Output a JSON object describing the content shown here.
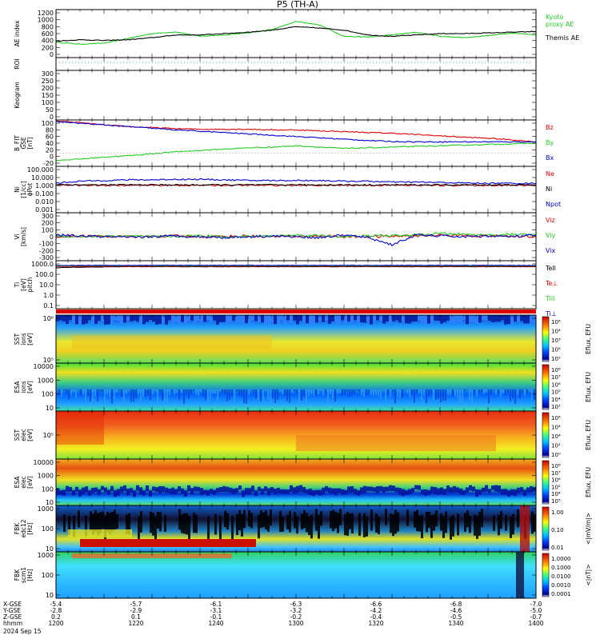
{
  "title": "P5 (TH-A)",
  "colors": {
    "black": "#000000",
    "red": "#dd0000",
    "green": "#22cc22",
    "blue": "#0000cc",
    "lime": "#00dd00",
    "cyan_dots": "#00bbbb"
  },
  "chart_data": [
    {
      "id": "ae",
      "type": "line",
      "ylabel": "AE index",
      "ylim": [
        -100,
        1300
      ],
      "yticks": [
        "1200",
        "1000",
        "800",
        "600",
        "400",
        "200",
        "0"
      ],
      "x": [
        1200,
        1210,
        1220,
        1230,
        1240,
        1250,
        1260,
        1270,
        1280,
        1290,
        1300,
        1310,
        1320,
        1330,
        1340,
        1350,
        1360,
        1370,
        1380,
        1390,
        1400
      ],
      "series": [
        {
          "name": "Kyoto proxy AE",
          "legend": [
            "Kyoto",
            "proxy AE"
          ],
          "color": "#22cc22",
          "values": [
            350,
            290,
            320,
            460,
            600,
            650,
            520,
            560,
            620,
            720,
            950,
            850,
            520,
            500,
            560,
            640,
            520,
            480,
            540,
            620,
            560
          ]
        },
        {
          "name": "Themis AE",
          "legend": [
            "Themis AE"
          ],
          "color": "#000000",
          "values": [
            380,
            420,
            400,
            420,
            480,
            560,
            560,
            600,
            640,
            700,
            800,
            760,
            700,
            560,
            520,
            560,
            600,
            600,
            620,
            640,
            660
          ]
        }
      ]
    },
    {
      "id": "roi",
      "type": "line",
      "ylabel": "ROI",
      "ylim": [
        0,
        1
      ],
      "yticks": []
    },
    {
      "id": "keogram",
      "type": "line",
      "ylabel": "Keogram",
      "ylim": [
        0,
        320
      ],
      "yticks": [
        "300",
        "250",
        "200",
        "150",
        "100",
        "50",
        "0"
      ]
    },
    {
      "id": "bfield",
      "type": "line",
      "ylabel": [
        "B_FIT",
        "GSE",
        "[nT]"
      ],
      "ylim": [
        -40,
        100
      ],
      "yticks": [
        "100",
        "80",
        "60",
        "40",
        "20",
        "0",
        "-20"
      ],
      "x": [
        1200,
        1210,
        1220,
        1230,
        1240,
        1250,
        1260,
        1270,
        1280,
        1290,
        1300,
        1310,
        1320,
        1330,
        1340,
        1350,
        1360,
        1370,
        1380,
        1390,
        1400
      ],
      "series": [
        {
          "name": "Bz",
          "color": "#dd0000",
          "values": [
            97,
            92,
            85,
            80,
            77,
            74,
            72,
            72,
            72,
            70,
            70,
            67,
            65,
            62,
            60,
            56,
            52,
            48,
            45,
            40,
            34
          ]
        },
        {
          "name": "By",
          "color": "#22cc22",
          "values": [
            -22,
            -18,
            -12,
            -8,
            -2,
            4,
            8,
            12,
            16,
            18,
            22,
            18,
            14,
            16,
            18,
            20,
            22,
            24,
            26,
            28,
            30
          ]
        },
        {
          "name": "Bx",
          "color": "#0000cc",
          "values": [
            95,
            90,
            85,
            80,
            75,
            70,
            66,
            62,
            58,
            54,
            50,
            46,
            42,
            38,
            35,
            34,
            34,
            34,
            34,
            34,
            34
          ]
        }
      ]
    },
    {
      "id": "density",
      "type": "line",
      "ylabel": [
        "Ni",
        "[1/cc]",
        "ϕPot"
      ],
      "yscale": "log",
      "ylim": [
        0.001,
        100
      ],
      "yticks": [
        "100.000",
        "10.000",
        "1.000",
        "0.100",
        "0.010",
        "0.001"
      ],
      "x": [
        1200,
        1210,
        1220,
        1230,
        1240,
        1250,
        1260,
        1270,
        1280,
        1290,
        1300,
        1310,
        1320,
        1330,
        1340,
        1350,
        1360,
        1370,
        1380,
        1390,
        1400
      ],
      "series": [
        {
          "name": "Ne",
          "color": "#dd0000",
          "values": [
            1.0,
            0.9,
            0.9,
            0.9,
            0.9,
            0.9,
            0.9,
            0.9,
            0.9,
            0.9,
            0.9,
            0.9,
            0.9,
            0.9,
            0.9,
            0.9,
            0.9,
            0.9,
            0.9,
            0.9,
            0.9
          ]
        },
        {
          "name": "Ni",
          "color": "#000000",
          "values": [
            1.1,
            1.0,
            1.0,
            1.0,
            1.0,
            1.0,
            1.0,
            1.0,
            1.0,
            1.0,
            1.0,
            1.0,
            1.0,
            1.0,
            1.0,
            1.0,
            1.0,
            1.0,
            1.0,
            1.0,
            1.0
          ]
        },
        {
          "name": "Npot",
          "color": "#0000cc",
          "values": [
            1.5,
            2.5,
            3.0,
            3.5,
            3.5,
            4.0,
            4.0,
            3.5,
            3.0,
            3.0,
            3.0,
            3.0,
            2.5,
            2.5,
            2.0,
            2.0,
            1.8,
            1.6,
            1.5,
            1.5,
            1.4
          ]
        }
      ]
    },
    {
      "id": "velocity",
      "type": "line",
      "ylabel": [
        "Vi",
        "[km/s]"
      ],
      "ylim": [
        -300,
        300
      ],
      "yticks": [
        "300",
        "200",
        "100",
        "0",
        "-100",
        "-200",
        "-300"
      ],
      "x": [
        1200,
        1210,
        1220,
        1230,
        1240,
        1250,
        1260,
        1270,
        1280,
        1290,
        1300,
        1310,
        1320,
        1330,
        1340,
        1350,
        1360,
        1370,
        1380,
        1390,
        1400
      ],
      "series": [
        {
          "name": "Viz",
          "color": "#dd0000",
          "values": [
            0,
            10,
            5,
            0,
            5,
            10,
            0,
            5,
            10,
            0,
            5,
            10,
            0,
            0,
            5,
            10,
            20,
            15,
            10,
            5,
            0
          ]
        },
        {
          "name": "Viy",
          "color": "#22cc22",
          "values": [
            10,
            0,
            5,
            10,
            0,
            5,
            15,
            0,
            5,
            10,
            20,
            15,
            0,
            10,
            15,
            20,
            40,
            30,
            20,
            30,
            20
          ]
        },
        {
          "name": "Vix",
          "color": "#0000cc",
          "values": [
            20,
            10,
            0,
            -10,
            0,
            10,
            0,
            -10,
            0,
            10,
            0,
            -10,
            20,
            -10,
            -100,
            20,
            10,
            0,
            10,
            0,
            20
          ]
        }
      ]
    },
    {
      "id": "temperature",
      "type": "line",
      "ylabel": [
        "Ti",
        "[eV]",
        "pitch"
      ],
      "yscale": "log",
      "ylim": [
        0.05,
        20000
      ],
      "yticks": [
        "1000.0",
        "100.0",
        "10.0",
        "1.0",
        "0.1"
      ],
      "x": [
        1200,
        1210,
        1220,
        1230,
        1240,
        1250,
        1260,
        1270,
        1280,
        1290,
        1300,
        1310,
        1320,
        1330,
        1340,
        1350,
        1360,
        1370,
        1380,
        1390,
        1400
      ],
      "series": [
        {
          "name": "Tell",
          "legend": [
            "Tell"
          ],
          "color": "#000000",
          "values": [
            3000,
            3500,
            3800,
            4000,
            4000,
            4000,
            4000,
            4000,
            4000,
            4000,
            4000,
            4000,
            4000,
            4000,
            4000,
            4000,
            4000,
            4000,
            4000,
            4000,
            4000
          ]
        },
        {
          "name": "Te⊥",
          "legend": [
            "Te⊥"
          ],
          "color": "#dd0000",
          "values": [
            4200,
            4500,
            4500,
            4500,
            4500,
            4500,
            4500,
            4500,
            4500,
            4500,
            4500,
            4500,
            4500,
            4500,
            4500,
            4500,
            4500,
            4500,
            4500,
            4500,
            4500
          ]
        },
        {
          "name": "Till",
          "legend": [
            "Till"
          ],
          "color": "#22cc22",
          "values": [
            5000,
            5200,
            5200,
            5200,
            5200,
            5200,
            5200,
            5200,
            5200,
            5200,
            5200,
            5200,
            5200,
            5200,
            5200,
            5200,
            5200,
            5200,
            5200,
            5200,
            5200
          ]
        },
        {
          "name": "Ti⊥",
          "legend": [
            "Ti⊥"
          ],
          "color": "#0000cc",
          "values": [
            5500,
            5800,
            5800,
            5800,
            5800,
            5800,
            5800,
            5800,
            5800,
            5800,
            5800,
            5800,
            5800,
            5800,
            5800,
            5800,
            5800,
            5800,
            5800,
            5800,
            5800
          ]
        }
      ]
    },
    {
      "id": "sst_ion",
      "type": "heatmap",
      "ylabel": [
        "SST",
        "ions",
        "[eV]"
      ],
      "yticks": [
        "10⁶",
        "10⁵"
      ],
      "cbar_label": "Eflux, EFU",
      "cbar_ticks": [
        "10⁸",
        "10⁷",
        "10⁶",
        "10⁵",
        "10⁴",
        "10³",
        "10²",
        "10¹",
        "10⁰"
      ],
      "cbar_ticks_shown": [
        "10⁸",
        "10⁴",
        "10³",
        "10⁶",
        "10⁵"
      ]
    },
    {
      "id": "esa_ion",
      "type": "heatmap",
      "ylabel": [
        "ESA",
        "ions",
        "[eV]"
      ],
      "yticks": [
        "10000",
        "1000",
        "100",
        "10"
      ],
      "cbar_label": "Eflux, EFU",
      "cbar_ticks_shown": [
        "10⁸",
        "10⁷",
        "10⁶",
        "10⁵",
        "10⁴",
        "10³"
      ]
    },
    {
      "id": "sst_elec",
      "type": "heatmap",
      "ylabel": [
        "SST",
        "elec",
        "[eV]"
      ],
      "yticks": [
        "10⁵"
      ],
      "cbar_label": "Eflux, EFU",
      "cbar_ticks_shown": [
        "10⁸",
        "10⁴",
        "10⁴",
        "10²",
        "10⁰"
      ]
    },
    {
      "id": "esa_elec",
      "type": "heatmap",
      "ylabel": [
        "ESA",
        "elec",
        "[eV]"
      ],
      "yticks": [
        "10000",
        "1000",
        "100",
        "10"
      ],
      "cbar_label": "Eflux, EFU",
      "cbar_ticks_shown": [
        "10⁸",
        "10⁷",
        "10⁶",
        "10⁵",
        "10⁴",
        "10⁵"
      ]
    },
    {
      "id": "fbk_e",
      "type": "heatmap",
      "ylabel": [
        "FBK",
        "edc12",
        "[Hz]"
      ],
      "yticks": [
        "1000",
        "100",
        "10"
      ],
      "cbar_label": "<|mV/m|>",
      "cbar_ticks_shown": [
        "1.00",
        "0.10",
        "0.01"
      ]
    },
    {
      "id": "fbk_b",
      "type": "heatmap",
      "ylabel": [
        "FBK",
        "scm1",
        "[Hz]"
      ],
      "yticks": [
        "1000",
        "100",
        "10"
      ],
      "cbar_label": "<|nT|>",
      "cbar_ticks_shown": [
        "1.0000",
        "0.1000",
        "0.0100",
        "0.0010",
        "0.0001"
      ]
    }
  ],
  "x_axis": {
    "row_labels": [
      "X-GSE",
      "Y-GSE",
      "Z-GSE",
      "hhmm",
      "2024 Sep 15"
    ],
    "columns": [
      [
        "-5.4",
        "-2.8",
        "0.2",
        "1200"
      ],
      [
        "-5.7",
        "-2.9",
        "0.1",
        "1220"
      ],
      [
        "-6.1",
        "-3.1",
        "-0.1",
        "1240"
      ],
      [
        "-6.3",
        "-3.2",
        "-0.2",
        "1300"
      ],
      [
        "-6.6",
        "-4.2",
        "-0.4",
        "1320"
      ],
      [
        "-6.8",
        "-4.6",
        "-0.5",
        "1340"
      ],
      [
        "-7.0",
        "-5.0",
        "-0.7",
        "1400"
      ]
    ]
  }
}
